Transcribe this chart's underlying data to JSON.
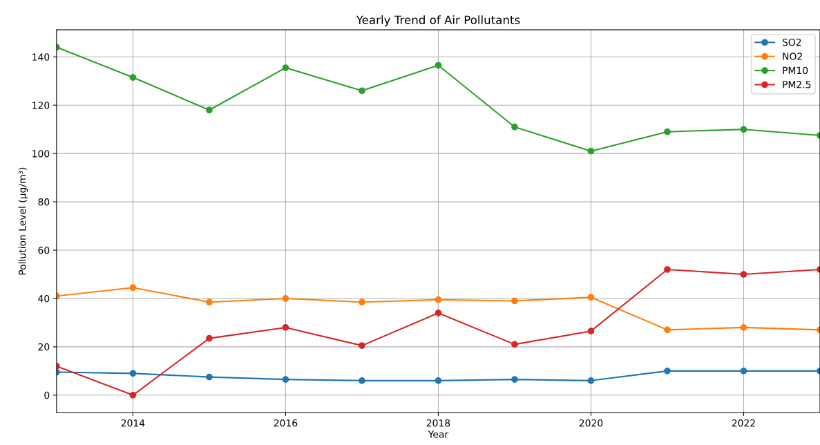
{
  "chart_data": {
    "type": "line",
    "title": "Yearly Trend of Air Pollutants",
    "xlabel": "Year",
    "ylabel": "Pollution Level (µg/m³)",
    "x": [
      2013,
      2014,
      2015,
      2016,
      2017,
      2018,
      2019,
      2020,
      2021,
      2022,
      2023
    ],
    "series": [
      {
        "name": "SO2",
        "color": "#1f77b4",
        "values": [
          9.5,
          9,
          7.5,
          6.5,
          6,
          6,
          6.5,
          6,
          10,
          10,
          10
        ]
      },
      {
        "name": "NO2",
        "color": "#ff7f0e",
        "values": [
          41,
          44.5,
          38.5,
          40,
          38.5,
          39.5,
          39,
          40.5,
          27,
          28,
          27
        ]
      },
      {
        "name": "PM10",
        "color": "#2ca02c",
        "values": [
          144,
          131.5,
          118,
          135.5,
          126,
          136.5,
          111,
          101,
          109,
          110,
          107.5
        ]
      },
      {
        "name": "PM2.5",
        "color": "#d62728",
        "values": [
          12,
          0,
          23.5,
          28,
          20.5,
          34,
          21,
          26.5,
          52,
          50,
          52
        ]
      }
    ],
    "xlim": [
      2013,
      2023
    ],
    "xticks": [
      2014,
      2016,
      2018,
      2020,
      2022
    ],
    "ylim": [
      -7.2,
      151.2
    ],
    "yticks": [
      0,
      20,
      40,
      60,
      80,
      100,
      120,
      140
    ],
    "grid": true,
    "legend": "top right",
    "marker": "circle",
    "line_style": "solid"
  }
}
